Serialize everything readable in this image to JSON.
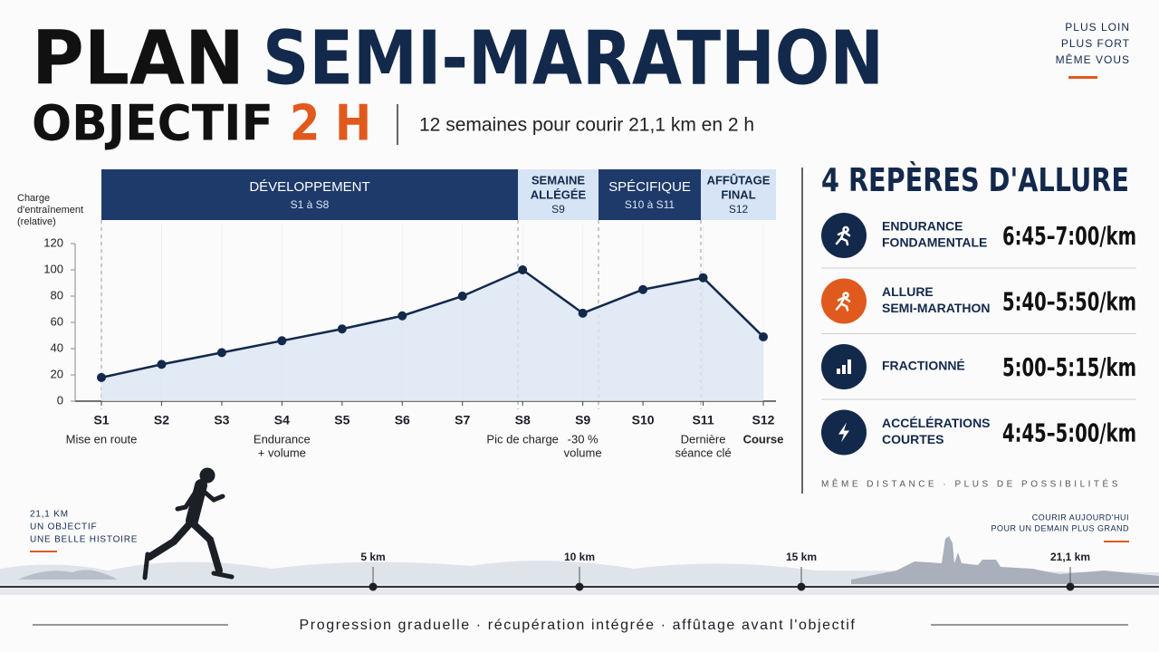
{
  "header": {
    "title_a": "PLAN",
    "title_b": "SEMI-MARATHON",
    "goal_a": "OBJECTIF",
    "goal_b": "2 H",
    "subtitle": "12 semaines pour courir 21,1 km en 2 h",
    "motto": [
      "PLUS LOIN",
      "PLUS FORT",
      "MÊME VOUS"
    ]
  },
  "chart_data": {
    "type": "line",
    "y_label": [
      "Charge",
      "d'entraînement",
      "(relative)"
    ],
    "categories": [
      "S1",
      "S2",
      "S3",
      "S4",
      "S5",
      "S6",
      "S7",
      "S8",
      "S9",
      "S10",
      "S11",
      "S12"
    ],
    "series": [
      {
        "name": "Charge d'entraînement",
        "color": "#13294b",
        "values": [
          18,
          28,
          37,
          46,
          55,
          65,
          80,
          100,
          67,
          85,
          94,
          49
        ]
      }
    ],
    "ylim": [
      0,
      120
    ],
    "yticks": [
      0,
      20,
      40,
      60,
      80,
      100,
      120
    ],
    "grid": false,
    "area_fill": "#dbe6f3",
    "phases": [
      {
        "name": [
          "DÉVELOPPEMENT"
        ],
        "weeks": "S1 à S8",
        "style": "dark"
      },
      {
        "name": [
          "SEMAINE",
          "ALLÉGÉE"
        ],
        "weeks": "S9",
        "style": "light"
      },
      {
        "name": [
          "SPÉCIFIQUE"
        ],
        "weeks": "S10 à S11",
        "style": "dark"
      },
      {
        "name": [
          "AFFÛTAGE",
          "FINAL"
        ],
        "weeks": "S12",
        "style": "light"
      }
    ],
    "x_annotations": [
      {
        "category": "S1",
        "text": [
          "Mise en route"
        ]
      },
      {
        "category": "S4",
        "text": [
          "Endurance",
          "+ volume"
        ]
      },
      {
        "category": "S8",
        "text": [
          "Pic de charge"
        ]
      },
      {
        "category": "S9",
        "text": [
          "-30 %",
          "volume"
        ]
      },
      {
        "category": "S11",
        "text": [
          "Dernière",
          "séance clé"
        ]
      },
      {
        "category": "S12",
        "text": [
          "Course"
        ]
      }
    ]
  },
  "paces": {
    "title": "4 REPÈRES D'ALLURE",
    "items": [
      {
        "label": [
          "ENDURANCE",
          "FONDAMENTALE"
        ],
        "pace": "6:45–7:00/km",
        "icon": "run"
      },
      {
        "label": [
          "ALLURE",
          "SEMI-MARATHON"
        ],
        "pace": "5:40–5:50/km",
        "icon": "run-orange"
      },
      {
        "label": [
          "FRACTIONNÉ"
        ],
        "pace": "5:00–5:15/km",
        "icon": "bars"
      },
      {
        "label": [
          "ACCÉLÉRATIONS",
          "COURTES"
        ],
        "pace": "4:45–5:00/km",
        "icon": "bolt"
      }
    ],
    "note": "MÊME DISTANCE · PLUS DE POSSIBILITÉS"
  },
  "road": {
    "left": [
      "21,1 KM",
      "UN OBJECTIF",
      "UNE BELLE HISTOIRE"
    ],
    "right": [
      "COURIR AUJOURD'HUI",
      "POUR UN DEMAIN PLUS GRAND"
    ],
    "markers": [
      "5 km",
      "10 km",
      "15 km",
      "21,1 km"
    ]
  },
  "footer": "Progression graduelle · récupération intégrée · affûtage avant l'objectif"
}
